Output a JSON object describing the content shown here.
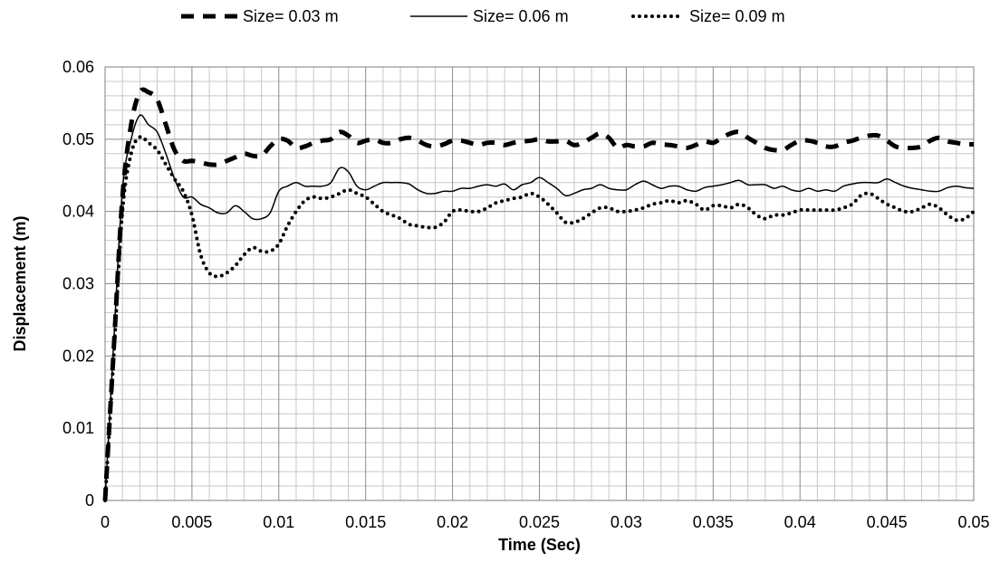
{
  "chart_data": {
    "type": "line",
    "title": "",
    "xlabel": "Time (Sec)",
    "ylabel": "Displacement (m)",
    "xlim": [
      0,
      0.05
    ],
    "ylim": [
      0,
      0.06
    ],
    "xticks": [
      "0",
      "0.005",
      "0.01",
      "0.015",
      "0.02",
      "0.025",
      "0.03",
      "0.035",
      "0.04",
      "0.045",
      "0.05"
    ],
    "yticks": [
      "0",
      "0.01",
      "0.02",
      "0.03",
      "0.04",
      "0.05",
      "0.06"
    ],
    "grid": "major and minor",
    "legend_position": "top",
    "series": [
      {
        "name": "Size= 0.03 m",
        "style": "dashed",
        "color": "#000000",
        "x": [
          0,
          0.0005,
          0.001,
          0.0015,
          0.002,
          0.0025,
          0.003,
          0.0035,
          0.004,
          0.0045,
          0.005,
          0.0055,
          0.006,
          0.0065,
          0.007,
          0.0075,
          0.008,
          0.0085,
          0.009,
          0.0095,
          0.01,
          0.0105,
          0.011,
          0.0115,
          0.012,
          0.0125,
          0.013,
          0.0135,
          0.014,
          0.0145,
          0.015,
          0.0155,
          0.016,
          0.0165,
          0.017,
          0.0175,
          0.018,
          0.0185,
          0.019,
          0.0195,
          0.02,
          0.0205,
          0.021,
          0.0215,
          0.022,
          0.0225,
          0.023,
          0.0235,
          0.024,
          0.0245,
          0.025,
          0.0255,
          0.026,
          0.0265,
          0.027,
          0.0275,
          0.028,
          0.0285,
          0.029,
          0.0295,
          0.03,
          0.0305,
          0.031,
          0.0315,
          0.032,
          0.0325,
          0.033,
          0.0335,
          0.034,
          0.0345,
          0.035,
          0.0355,
          0.036,
          0.0365,
          0.037,
          0.0375,
          0.038,
          0.0385,
          0.039,
          0.0395,
          0.04,
          0.0405,
          0.041,
          0.0415,
          0.042,
          0.0425,
          0.043,
          0.0435,
          0.044,
          0.0445,
          0.045,
          0.0455,
          0.046,
          0.0465,
          0.047,
          0.0475,
          0.048,
          0.0485,
          0.049,
          0.0495,
          0.05
        ],
        "y": [
          0,
          0.021,
          0.042,
          0.052,
          0.0565,
          0.0565,
          0.0555,
          0.052,
          0.0485,
          0.047,
          0.047,
          0.0468,
          0.0465,
          0.0465,
          0.047,
          0.0475,
          0.048,
          0.0477,
          0.0477,
          0.049,
          0.05,
          0.0498,
          0.0488,
          0.049,
          0.0495,
          0.0498,
          0.05,
          0.051,
          0.0505,
          0.0495,
          0.0498,
          0.05,
          0.0495,
          0.0495,
          0.05,
          0.0502,
          0.0498,
          0.0492,
          0.049,
          0.0493,
          0.0498,
          0.0498,
          0.0495,
          0.0492,
          0.0495,
          0.0495,
          0.0492,
          0.0495,
          0.0497,
          0.0498,
          0.05,
          0.0497,
          0.0497,
          0.0498,
          0.0492,
          0.0495,
          0.0502,
          0.0508,
          0.0502,
          0.0488,
          0.0492,
          0.049,
          0.049,
          0.0495,
          0.0493,
          0.0492,
          0.049,
          0.0488,
          0.0492,
          0.0497,
          0.0495,
          0.0502,
          0.0508,
          0.051,
          0.0502,
          0.0495,
          0.0488,
          0.0485,
          0.0485,
          0.0492,
          0.0498,
          0.0498,
          0.0495,
          0.049,
          0.049,
          0.0495,
          0.0498,
          0.0502,
          0.0505,
          0.0505,
          0.0498,
          0.049,
          0.0488,
          0.0488,
          0.049,
          0.0498,
          0.0502,
          0.0497,
          0.0495,
          0.0493,
          0.0493
        ]
      },
      {
        "name": "Size= 0.06 m",
        "style": "solid",
        "color": "#000000",
        "x": [
          0,
          0.0005,
          0.001,
          0.0015,
          0.002,
          0.0025,
          0.003,
          0.0035,
          0.004,
          0.0045,
          0.005,
          0.0055,
          0.006,
          0.0065,
          0.007,
          0.0075,
          0.008,
          0.0085,
          0.009,
          0.0095,
          0.01,
          0.0105,
          0.011,
          0.0115,
          0.012,
          0.0125,
          0.013,
          0.0135,
          0.014,
          0.0145,
          0.015,
          0.0155,
          0.016,
          0.0165,
          0.017,
          0.0175,
          0.018,
          0.0185,
          0.019,
          0.0195,
          0.02,
          0.0205,
          0.021,
          0.0215,
          0.022,
          0.0225,
          0.023,
          0.0235,
          0.024,
          0.0245,
          0.025,
          0.0255,
          0.026,
          0.0265,
          0.027,
          0.0275,
          0.028,
          0.0285,
          0.029,
          0.0295,
          0.03,
          0.0305,
          0.031,
          0.0315,
          0.032,
          0.0325,
          0.033,
          0.0335,
          0.034,
          0.0345,
          0.035,
          0.0355,
          0.036,
          0.0365,
          0.037,
          0.0375,
          0.038,
          0.0385,
          0.039,
          0.0395,
          0.04,
          0.0405,
          0.041,
          0.0415,
          0.042,
          0.0425,
          0.043,
          0.0435,
          0.044,
          0.0445,
          0.045,
          0.0455,
          0.046,
          0.0465,
          0.047,
          0.0475,
          0.048,
          0.0485,
          0.049,
          0.0495,
          0.05
        ],
        "y": [
          0,
          0.022,
          0.043,
          0.05,
          0.0533,
          0.052,
          0.051,
          0.048,
          0.0445,
          0.042,
          0.042,
          0.041,
          0.0405,
          0.0398,
          0.0398,
          0.0408,
          0.04,
          0.039,
          0.039,
          0.0398,
          0.0428,
          0.0435,
          0.044,
          0.0435,
          0.0435,
          0.0435,
          0.044,
          0.046,
          0.0455,
          0.0435,
          0.043,
          0.0435,
          0.044,
          0.044,
          0.044,
          0.0438,
          0.043,
          0.0425,
          0.0425,
          0.0428,
          0.0428,
          0.0432,
          0.0432,
          0.0435,
          0.0437,
          0.0435,
          0.0438,
          0.043,
          0.0437,
          0.044,
          0.0447,
          0.044,
          0.0432,
          0.0422,
          0.0425,
          0.043,
          0.0432,
          0.0437,
          0.0432,
          0.043,
          0.043,
          0.0437,
          0.0442,
          0.0437,
          0.0432,
          0.0435,
          0.0435,
          0.043,
          0.0428,
          0.0433,
          0.0435,
          0.0437,
          0.044,
          0.0443,
          0.0437,
          0.0437,
          0.0437,
          0.0432,
          0.0435,
          0.043,
          0.0428,
          0.0432,
          0.0428,
          0.043,
          0.0428,
          0.0435,
          0.0438,
          0.044,
          0.044,
          0.044,
          0.0445,
          0.044,
          0.0435,
          0.0432,
          0.043,
          0.0428,
          0.0428,
          0.0433,
          0.0435,
          0.0433,
          0.0432
        ]
      },
      {
        "name": "Size= 0.09 m",
        "style": "dotted",
        "color": "#000000",
        "x": [
          0,
          0.0005,
          0.001,
          0.0015,
          0.002,
          0.0025,
          0.003,
          0.0035,
          0.004,
          0.0045,
          0.005,
          0.0055,
          0.006,
          0.0065,
          0.007,
          0.0075,
          0.008,
          0.0085,
          0.009,
          0.0095,
          0.01,
          0.0105,
          0.011,
          0.0115,
          0.012,
          0.0125,
          0.013,
          0.0135,
          0.014,
          0.0145,
          0.015,
          0.0155,
          0.016,
          0.0165,
          0.017,
          0.0175,
          0.018,
          0.0185,
          0.019,
          0.0195,
          0.02,
          0.0205,
          0.021,
          0.0215,
          0.022,
          0.0225,
          0.023,
          0.0235,
          0.024,
          0.0245,
          0.025,
          0.0255,
          0.026,
          0.0265,
          0.027,
          0.0275,
          0.028,
          0.0285,
          0.029,
          0.0295,
          0.03,
          0.0305,
          0.031,
          0.0315,
          0.032,
          0.0325,
          0.033,
          0.0335,
          0.034,
          0.0345,
          0.035,
          0.0355,
          0.036,
          0.0365,
          0.037,
          0.0375,
          0.038,
          0.0385,
          0.039,
          0.0395,
          0.04,
          0.0405,
          0.041,
          0.0415,
          0.042,
          0.0425,
          0.043,
          0.0435,
          0.044,
          0.0445,
          0.045,
          0.0455,
          0.046,
          0.0465,
          0.047,
          0.0475,
          0.048,
          0.0485,
          0.049,
          0.0495,
          0.05
        ],
        "y": [
          0,
          0.02,
          0.04,
          0.048,
          0.0503,
          0.0495,
          0.0485,
          0.0465,
          0.0445,
          0.0428,
          0.0395,
          0.034,
          0.0315,
          0.031,
          0.0315,
          0.0325,
          0.034,
          0.035,
          0.0345,
          0.0345,
          0.0355,
          0.038,
          0.04,
          0.0415,
          0.042,
          0.0418,
          0.042,
          0.0425,
          0.043,
          0.0425,
          0.042,
          0.041,
          0.04,
          0.0395,
          0.039,
          0.0382,
          0.038,
          0.0378,
          0.0378,
          0.0385,
          0.04,
          0.0402,
          0.04,
          0.04,
          0.0405,
          0.0412,
          0.0415,
          0.0418,
          0.042,
          0.0425,
          0.042,
          0.041,
          0.0398,
          0.0385,
          0.0385,
          0.039,
          0.0398,
          0.0405,
          0.0405,
          0.04,
          0.04,
          0.0402,
          0.0405,
          0.041,
          0.0412,
          0.0415,
          0.0412,
          0.0415,
          0.041,
          0.0402,
          0.0408,
          0.0408,
          0.0405,
          0.041,
          0.0405,
          0.0395,
          0.039,
          0.0395,
          0.0395,
          0.0398,
          0.0402,
          0.0402,
          0.0402,
          0.0402,
          0.0402,
          0.0405,
          0.041,
          0.0422,
          0.0425,
          0.0418,
          0.041,
          0.0405,
          0.04,
          0.04,
          0.0405,
          0.041,
          0.0405,
          0.0395,
          0.0388,
          0.039,
          0.04
        ]
      }
    ]
  }
}
